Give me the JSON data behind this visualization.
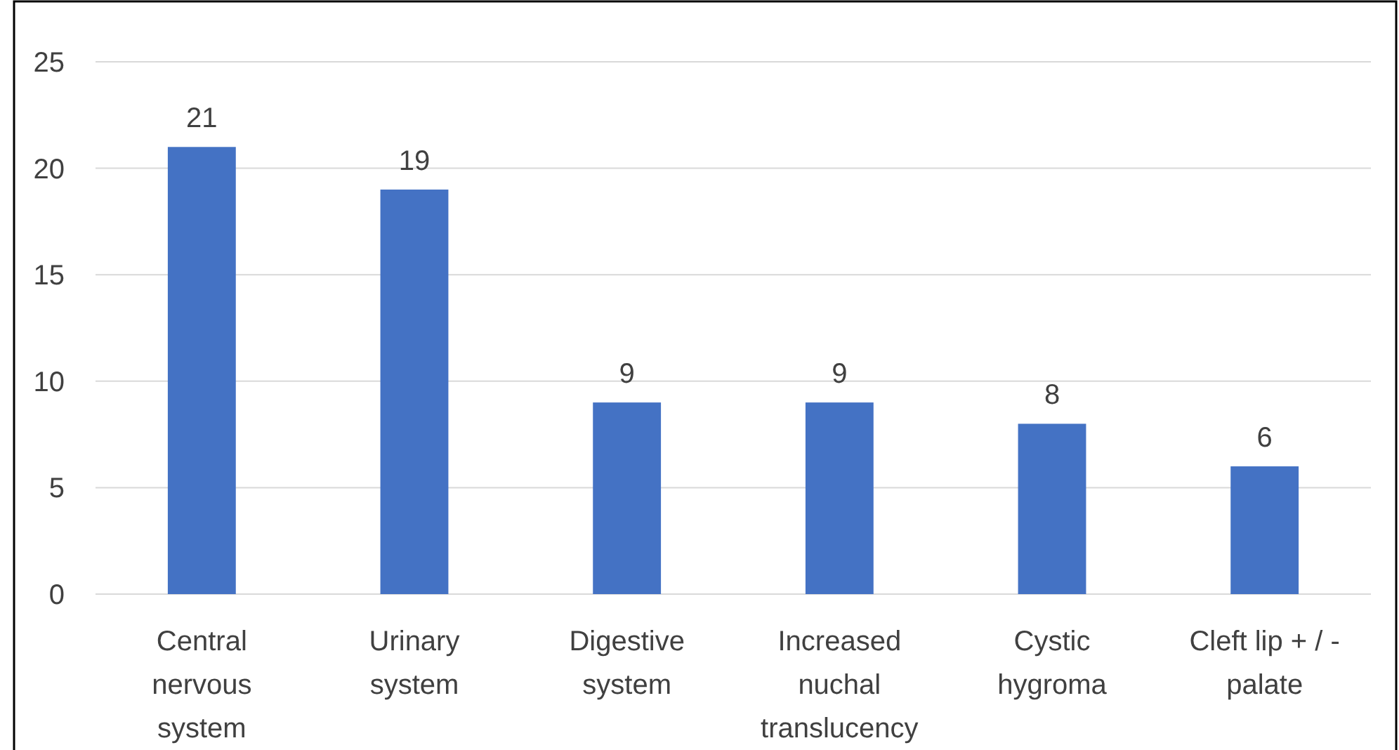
{
  "chart_data": {
    "type": "bar",
    "categories": [
      "Central\nnervous\nsystem",
      "Urinary\nsystem",
      "Digestive\nsystem",
      "Increased\nnuchal\ntranslucency",
      "Cystic\nhygroma",
      "Cleft lip  + / -\npalate"
    ],
    "values": [
      21,
      19,
      9,
      9,
      8,
      6
    ],
    "color": "#4472c4",
    "ylim": [
      0,
      25
    ],
    "yticks": [
      0,
      5,
      10,
      15,
      20,
      25
    ],
    "grid": "y",
    "data_labels": true
  }
}
